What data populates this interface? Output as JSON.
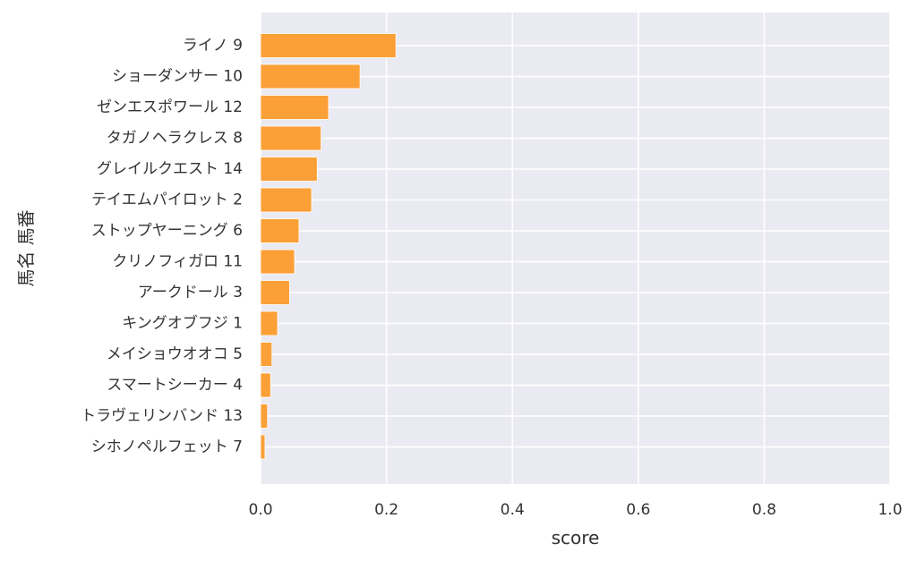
{
  "chart_data": {
    "type": "bar",
    "orientation": "horizontal",
    "xlabel": "score",
    "ylabel": "馬名 馬番",
    "xlim": [
      0.0,
      1.0
    ],
    "xticks": [
      "0.0",
      "0.2",
      "0.4",
      "0.6",
      "0.8",
      "1.0"
    ],
    "grid": true,
    "bar_color": "#fba037",
    "background_color": "#eaeaf2",
    "categories": [
      "ライノ 9",
      "ショーダンサー 10",
      "ゼンエスポワール 12",
      "タガノヘラクレス 8",
      "グレイルクエスト 14",
      "テイエムパイロット 2",
      "ストップヤーニング 6",
      "クリノフィガロ 11",
      "アークドール 3",
      "キングオブフジ 1",
      "メイショウオオコ 5",
      "スマートシーカー 4",
      "トラヴェリンバンド 13",
      "シホノペルフェット 7"
    ],
    "values": [
      0.215,
      0.158,
      0.108,
      0.096,
      0.09,
      0.081,
      0.061,
      0.054,
      0.046,
      0.027,
      0.018,
      0.016,
      0.011,
      0.007
    ]
  }
}
